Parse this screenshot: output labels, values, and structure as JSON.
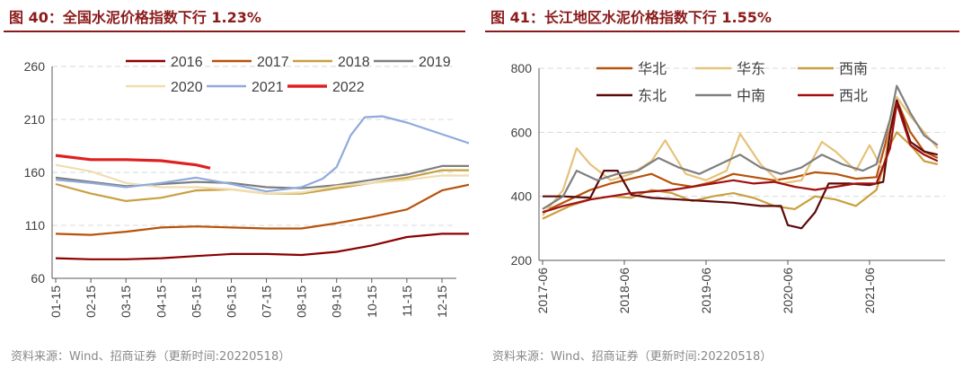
{
  "left": {
    "title": "图 40：全国水泥价格指数下行 1.23%",
    "source": "资料来源：Wind、招商证券（更新时间:20220518）"
  },
  "right": {
    "title": "图 41：长江地区水泥价格指数下行 1.55%",
    "source": "资料来源：Wind、招商证券（更新时间:20220518）"
  },
  "colors": {
    "accent": "#8B1A1A",
    "grid": "#d9d9d9"
  },
  "chart_data": [
    {
      "type": "line",
      "title": "",
      "xlabel": "",
      "ylabel": "",
      "ylim": [
        60,
        260
      ],
      "yticks": [
        60,
        110,
        160,
        210,
        260
      ],
      "xlim": [
        1,
        13
      ],
      "xticks": [
        {
          "label": "01-15",
          "x": 1
        },
        {
          "label": "02-15",
          "x": 2
        },
        {
          "label": "03-15",
          "x": 3
        },
        {
          "label": "04-15",
          "x": 4
        },
        {
          "label": "05-15",
          "x": 5
        },
        {
          "label": "06-15",
          "x": 6
        },
        {
          "label": "07-15",
          "x": 7
        },
        {
          "label": "08-15",
          "x": 8
        },
        {
          "label": "09-15",
          "x": 9
        },
        {
          "label": "10-15",
          "x": 10
        },
        {
          "label": "11-15",
          "x": 11
        },
        {
          "label": "12-15",
          "x": 12
        }
      ],
      "grid": "horizontal-dashed",
      "legend": "top",
      "series": [
        {
          "name": "2016",
          "color": "#8B0000",
          "points": [
            [
              1,
              79
            ],
            [
              2,
              78
            ],
            [
              3,
              78
            ],
            [
              4,
              79
            ],
            [
              5,
              81
            ],
            [
              6,
              83
            ],
            [
              7,
              83
            ],
            [
              8,
              82
            ],
            [
              9,
              85
            ],
            [
              10,
              91
            ],
            [
              11,
              99
            ],
            [
              12,
              102
            ],
            [
              13,
              102
            ]
          ]
        },
        {
          "name": "2017",
          "color": "#B8520A",
          "points": [
            [
              1,
              102
            ],
            [
              2,
              101
            ],
            [
              3,
              104
            ],
            [
              4,
              108
            ],
            [
              5,
              109
            ],
            [
              6,
              108
            ],
            [
              7,
              107
            ],
            [
              8,
              107
            ],
            [
              9,
              112
            ],
            [
              10,
              118
            ],
            [
              11,
              125
            ],
            [
              12,
              143
            ],
            [
              13,
              150
            ]
          ]
        },
        {
          "name": "2018",
          "color": "#C8A040",
          "points": [
            [
              1,
              149
            ],
            [
              2,
              140
            ],
            [
              3,
              133
            ],
            [
              4,
              136
            ],
            [
              5,
              143
            ],
            [
              6,
              144
            ],
            [
              7,
              140
            ],
            [
              8,
              140
            ],
            [
              9,
              145
            ],
            [
              10,
              150
            ],
            [
              11,
              155
            ],
            [
              12,
              162
            ],
            [
              13,
              162
            ]
          ]
        },
        {
          "name": "2019",
          "color": "#7F7F7F",
          "points": [
            [
              1,
              155
            ],
            [
              2,
              151
            ],
            [
              3,
              147
            ],
            [
              4,
              149
            ],
            [
              5,
              151
            ],
            [
              6,
              150
            ],
            [
              7,
              146
            ],
            [
              8,
              145
            ],
            [
              9,
              148
            ],
            [
              10,
              153
            ],
            [
              11,
              158
            ],
            [
              12,
              166
            ],
            [
              13,
              166
            ]
          ]
        },
        {
          "name": "2020",
          "color": "#F0DDB0",
          "points": [
            [
              1,
              167
            ],
            [
              2,
              161
            ],
            [
              3,
              150
            ],
            [
              4,
              146
            ],
            [
              5,
              146
            ],
            [
              6,
              144
            ],
            [
              7,
              140
            ],
            [
              8,
              141
            ],
            [
              9,
              147
            ],
            [
              10,
              150
            ],
            [
              11,
              153
            ],
            [
              12,
              157
            ],
            [
              13,
              157
            ]
          ]
        },
        {
          "name": "2021",
          "color": "#8FAADC",
          "points": [
            [
              1,
              153
            ],
            [
              2,
              150
            ],
            [
              3,
              146
            ],
            [
              4,
              150
            ],
            [
              5,
              155
            ],
            [
              6,
              149
            ],
            [
              7,
              142
            ],
            [
              8,
              146
            ],
            [
              8.6,
              154
            ],
            [
              9,
              165
            ],
            [
              9.4,
              195
            ],
            [
              9.8,
              212
            ],
            [
              10.3,
              213
            ],
            [
              11,
              207
            ],
            [
              12,
              196
            ],
            [
              13,
              185
            ]
          ]
        },
        {
          "name": "2022",
          "color": "#E02020",
          "points": [
            [
              1,
              176
            ],
            [
              2,
              172
            ],
            [
              3,
              172
            ],
            [
              4,
              171
            ],
            [
              5,
              167
            ],
            [
              5.4,
              164
            ]
          ]
        }
      ]
    },
    {
      "type": "line",
      "title": "",
      "xlabel": "",
      "ylabel": "",
      "ylim": [
        200,
        800
      ],
      "yticks": [
        200,
        400,
        600,
        800
      ],
      "xlim": [
        "2017-06",
        "2022-04"
      ],
      "xticks": [
        "2017-06",
        "2018-06",
        "2019-06",
        "2020-06",
        "2021-06"
      ],
      "grid": "horizontal-dashed",
      "legend": "top",
      "series": [
        {
          "name": "华北",
          "color": "#B8520A",
          "points": [
            [
              "2017-06",
              350
            ],
            [
              "2017-10",
              390
            ],
            [
              "2018-01",
              420
            ],
            [
              "2018-04",
              440
            ],
            [
              "2018-07",
              455
            ],
            [
              "2018-10",
              470
            ],
            [
              "2019-01",
              440
            ],
            [
              "2019-04",
              430
            ],
            [
              "2019-07",
              445
            ],
            [
              "2019-10",
              470
            ],
            [
              "2020-01",
              460
            ],
            [
              "2020-04",
              450
            ],
            [
              "2020-07",
              460
            ],
            [
              "2020-10",
              475
            ],
            [
              "2021-01",
              470
            ],
            [
              "2021-04",
              455
            ],
            [
              "2021-07",
              460
            ],
            [
              "2021-09",
              620
            ],
            [
              "2021-10",
              700
            ],
            [
              "2021-12",
              600
            ],
            [
              "2022-02",
              540
            ],
            [
              "2022-04",
              520
            ]
          ]
        },
        {
          "name": "华东",
          "color": "#E6C27A",
          "points": [
            [
              "2017-06",
              340
            ],
            [
              "2017-09",
              420
            ],
            [
              "2017-11",
              550
            ],
            [
              "2018-01",
              500
            ],
            [
              "2018-04",
              450
            ],
            [
              "2018-07",
              470
            ],
            [
              "2018-10",
              510
            ],
            [
              "2018-12",
              575
            ],
            [
              "2019-03",
              470
            ],
            [
              "2019-06",
              450
            ],
            [
              "2019-09",
              480
            ],
            [
              "2019-11",
              595
            ],
            [
              "2020-02",
              500
            ],
            [
              "2020-05",
              440
            ],
            [
              "2020-08",
              450
            ],
            [
              "2020-11",
              570
            ],
            [
              "2021-01",
              540
            ],
            [
              "2021-04",
              480
            ],
            [
              "2021-06",
              560
            ],
            [
              "2021-08",
              480
            ],
            [
              "2021-09",
              620
            ],
            [
              "2021-10",
              710
            ],
            [
              "2021-12",
              650
            ],
            [
              "2022-02",
              600
            ],
            [
              "2022-04",
              550
            ]
          ]
        },
        {
          "name": "西南",
          "color": "#C8A040",
          "points": [
            [
              "2017-06",
              330
            ],
            [
              "2017-10",
              370
            ],
            [
              "2018-01",
              390
            ],
            [
              "2018-04",
              400
            ],
            [
              "2018-07",
              395
            ],
            [
              "2018-10",
              420
            ],
            [
              "2019-01",
              410
            ],
            [
              "2019-04",
              385
            ],
            [
              "2019-07",
              400
            ],
            [
              "2019-10",
              410
            ],
            [
              "2020-01",
              395
            ],
            [
              "2020-04",
              370
            ],
            [
              "2020-07",
              360
            ],
            [
              "2020-10",
              400
            ],
            [
              "2021-01",
              390
            ],
            [
              "2021-04",
              370
            ],
            [
              "2021-07",
              420
            ],
            [
              "2021-09",
              560
            ],
            [
              "2021-10",
              600
            ],
            [
              "2021-12",
              560
            ],
            [
              "2022-02",
              510
            ],
            [
              "2022-04",
              500
            ]
          ]
        },
        {
          "name": "东北",
          "color": "#5C0A0A",
          "points": [
            [
              "2017-06",
              400
            ],
            [
              "2017-09",
              400
            ],
            [
              "2018-01",
              395
            ],
            [
              "2018-03",
              480
            ],
            [
              "2018-05",
              480
            ],
            [
              "2018-07",
              405
            ],
            [
              "2018-10",
              395
            ],
            [
              "2019-02",
              390
            ],
            [
              "2019-06",
              385
            ],
            [
              "2019-10",
              380
            ],
            [
              "2020-02",
              370
            ],
            [
              "2020-05",
              370
            ],
            [
              "2020-06",
              310
            ],
            [
              "2020-08",
              300
            ],
            [
              "2020-10",
              350
            ],
            [
              "2020-12",
              440
            ],
            [
              "2021-03",
              440
            ],
            [
              "2021-06",
              435
            ],
            [
              "2021-08",
              445
            ],
            [
              "2021-09",
              600
            ],
            [
              "2021-10",
              700
            ],
            [
              "2021-12",
              570
            ],
            [
              "2022-02",
              540
            ],
            [
              "2022-04",
              530
            ]
          ]
        },
        {
          "name": "中南",
          "color": "#7F7F7F",
          "points": [
            [
              "2017-06",
              360
            ],
            [
              "2017-09",
              400
            ],
            [
              "2017-11",
              480
            ],
            [
              "2018-02",
              450
            ],
            [
              "2018-05",
              470
            ],
            [
              "2018-08",
              480
            ],
            [
              "2018-11",
              520
            ],
            [
              "2019-02",
              490
            ],
            [
              "2019-05",
              470
            ],
            [
              "2019-08",
              500
            ],
            [
              "2019-11",
              530
            ],
            [
              "2020-02",
              490
            ],
            [
              "2020-05",
              470
            ],
            [
              "2020-08",
              490
            ],
            [
              "2020-11",
              530
            ],
            [
              "2021-02",
              500
            ],
            [
              "2021-05",
              480
            ],
            [
              "2021-07",
              500
            ],
            [
              "2021-09",
              640
            ],
            [
              "2021-10",
              745
            ],
            [
              "2021-12",
              660
            ],
            [
              "2022-02",
              590
            ],
            [
              "2022-04",
              560
            ]
          ]
        },
        {
          "name": "西北",
          "color": "#A01010",
          "points": [
            [
              "2017-06",
              350
            ],
            [
              "2017-09",
              370
            ],
            [
              "2018-01",
              390
            ],
            [
              "2018-04",
              400
            ],
            [
              "2018-07",
              410
            ],
            [
              "2018-10",
              415
            ],
            [
              "2019-01",
              420
            ],
            [
              "2019-04",
              430
            ],
            [
              "2019-07",
              440
            ],
            [
              "2019-10",
              450
            ],
            [
              "2020-01",
              440
            ],
            [
              "2020-04",
              445
            ],
            [
              "2020-07",
              430
            ],
            [
              "2020-10",
              420
            ],
            [
              "2021-01",
              430
            ],
            [
              "2021-04",
              440
            ],
            [
              "2021-07",
              440
            ],
            [
              "2021-09",
              550
            ],
            [
              "2021-10",
              690
            ],
            [
              "2021-12",
              560
            ],
            [
              "2022-02",
              530
            ],
            [
              "2022-04",
              510
            ]
          ]
        }
      ]
    }
  ]
}
